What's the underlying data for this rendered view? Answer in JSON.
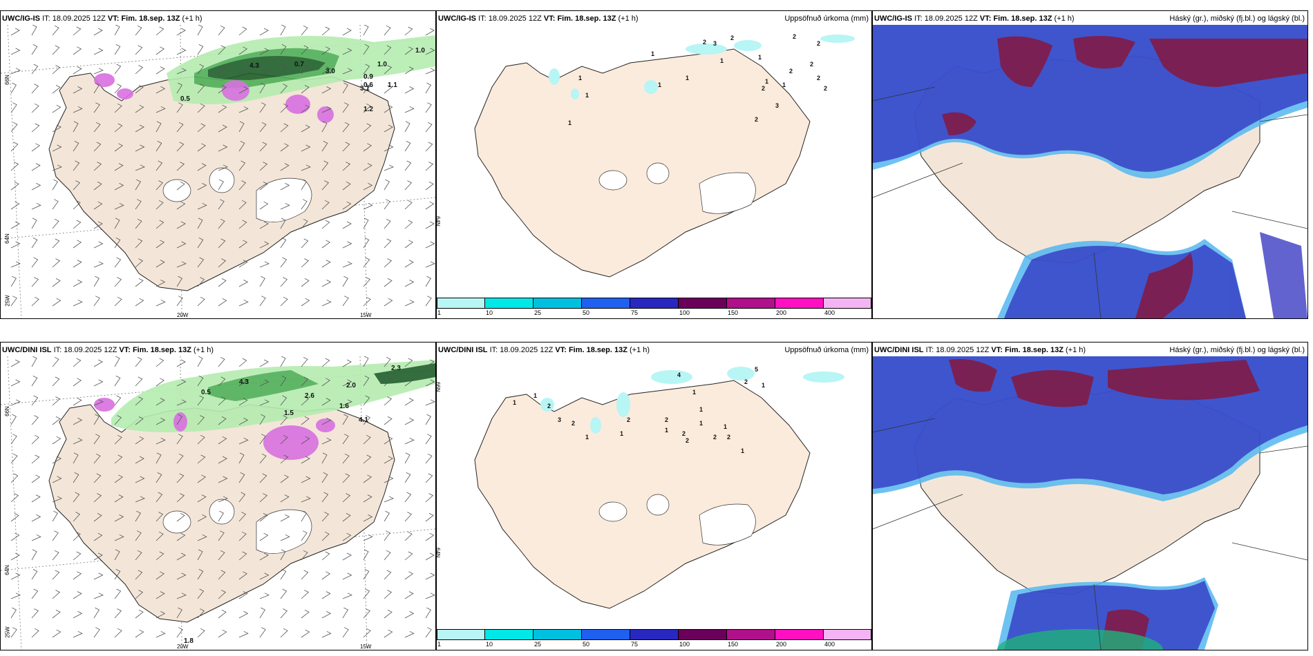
{
  "panels": [
    {
      "model": "UWC/IG-IS",
      "it_label": "IT:",
      "it": "18.09.2025 12Z",
      "vt_label": "VT:",
      "vt": "Fim. 18.sep. 13Z",
      "lead": "(+1 h)",
      "right": ""
    },
    {
      "model": "UWC/IG-IS",
      "it_label": "IT:",
      "it": "18.09.2025 12Z",
      "vt_label": "VT:",
      "vt": "Fim. 18.sep. 13Z",
      "lead": "(+1 h)",
      "right": "Uppsöfnuð úrkoma (mm)"
    },
    {
      "model": "UWC/IG-IS",
      "it_label": "IT:",
      "it": "18.09.2025 12Z",
      "vt_label": "VT:",
      "vt": "Fim. 18.sep. 13Z",
      "lead": "(+1 h)",
      "right": "Háský (gr.), miðský (fj.bl.) og lágský (bl.)"
    },
    {
      "model": "UWC/DINI ISL",
      "it_label": "IT:",
      "it": "18.09.2025 12Z",
      "vt_label": "VT:",
      "vt": "Fim. 18.sep. 13Z",
      "lead": "(+1 h)",
      "right": ""
    },
    {
      "model": "UWC/DINI ISL",
      "it_label": "IT:",
      "it": "18.09.2025 12Z",
      "vt_label": "VT:",
      "vt": "Fim. 18.sep. 13Z",
      "lead": "(+1 h)",
      "right": "Uppsöfnuð úrkoma (mm)"
    },
    {
      "model": "UWC/DINI ISL",
      "it_label": "IT:",
      "it": "18.09.2025 12Z",
      "vt_label": "VT:",
      "vt": "Fim. 18.sep. 13Z",
      "lead": "(+1 h)",
      "right": "Háský (gr.), miðský (fj.bl.) og lágský (bl.)"
    }
  ],
  "axes": {
    "lat66": "66N",
    "lat64": "64N",
    "lon25": "25W",
    "lon20": "20W",
    "lon15": "15W"
  },
  "colorbar": {
    "labels": [
      "1",
      "10",
      "25",
      "50",
      "75",
      "100",
      "150",
      "200",
      "400"
    ],
    "colors": [
      "#b8f5f5",
      "#00e8e8",
      "#00c0e0",
      "#2060f0",
      "#2828c0",
      "#6a005a",
      "#b0108a",
      "#ff10c0",
      "#f4b4f4"
    ]
  },
  "precip_labels_top": [
    "1",
    "2",
    "3",
    "2",
    "1",
    "1",
    "1",
    "2",
    "1",
    "2",
    "1",
    "1",
    "3",
    "2",
    "2",
    "2",
    "1",
    "1",
    "1",
    "2",
    "2",
    "2"
  ],
  "precip_labels_bottom": [
    "1",
    "2",
    "1",
    "3",
    "2",
    "1",
    "4",
    "1",
    "1",
    "1",
    "2",
    "2",
    "1",
    "5",
    "2",
    "1",
    "1",
    "2",
    "2",
    "1",
    "2",
    "2",
    "1"
  ],
  "wind_labels_top": [
    "4.3",
    "0.7",
    "3.0",
    "0.9",
    "1.0",
    "1.0",
    "0.6",
    "3.1",
    "1.2",
    "0.5",
    "1.1"
  ],
  "wind_labels_bottom": [
    "4.3",
    "0.5",
    "2.0",
    "2.6",
    "1.5",
    "1.6",
    "2.3",
    "4.1",
    "1.8"
  ],
  "colors": {
    "land": "#f3e6d8",
    "land2": "#fbebdc",
    "precip_dark": "#1f5e2a",
    "precip_mid": "#4faf57",
    "precip_light": "#b5ecb0",
    "snow": "#d870e0",
    "cloud_high": "#85183e",
    "cloud_mid": "#3030c0",
    "cloud_low": "#55b7f0"
  }
}
